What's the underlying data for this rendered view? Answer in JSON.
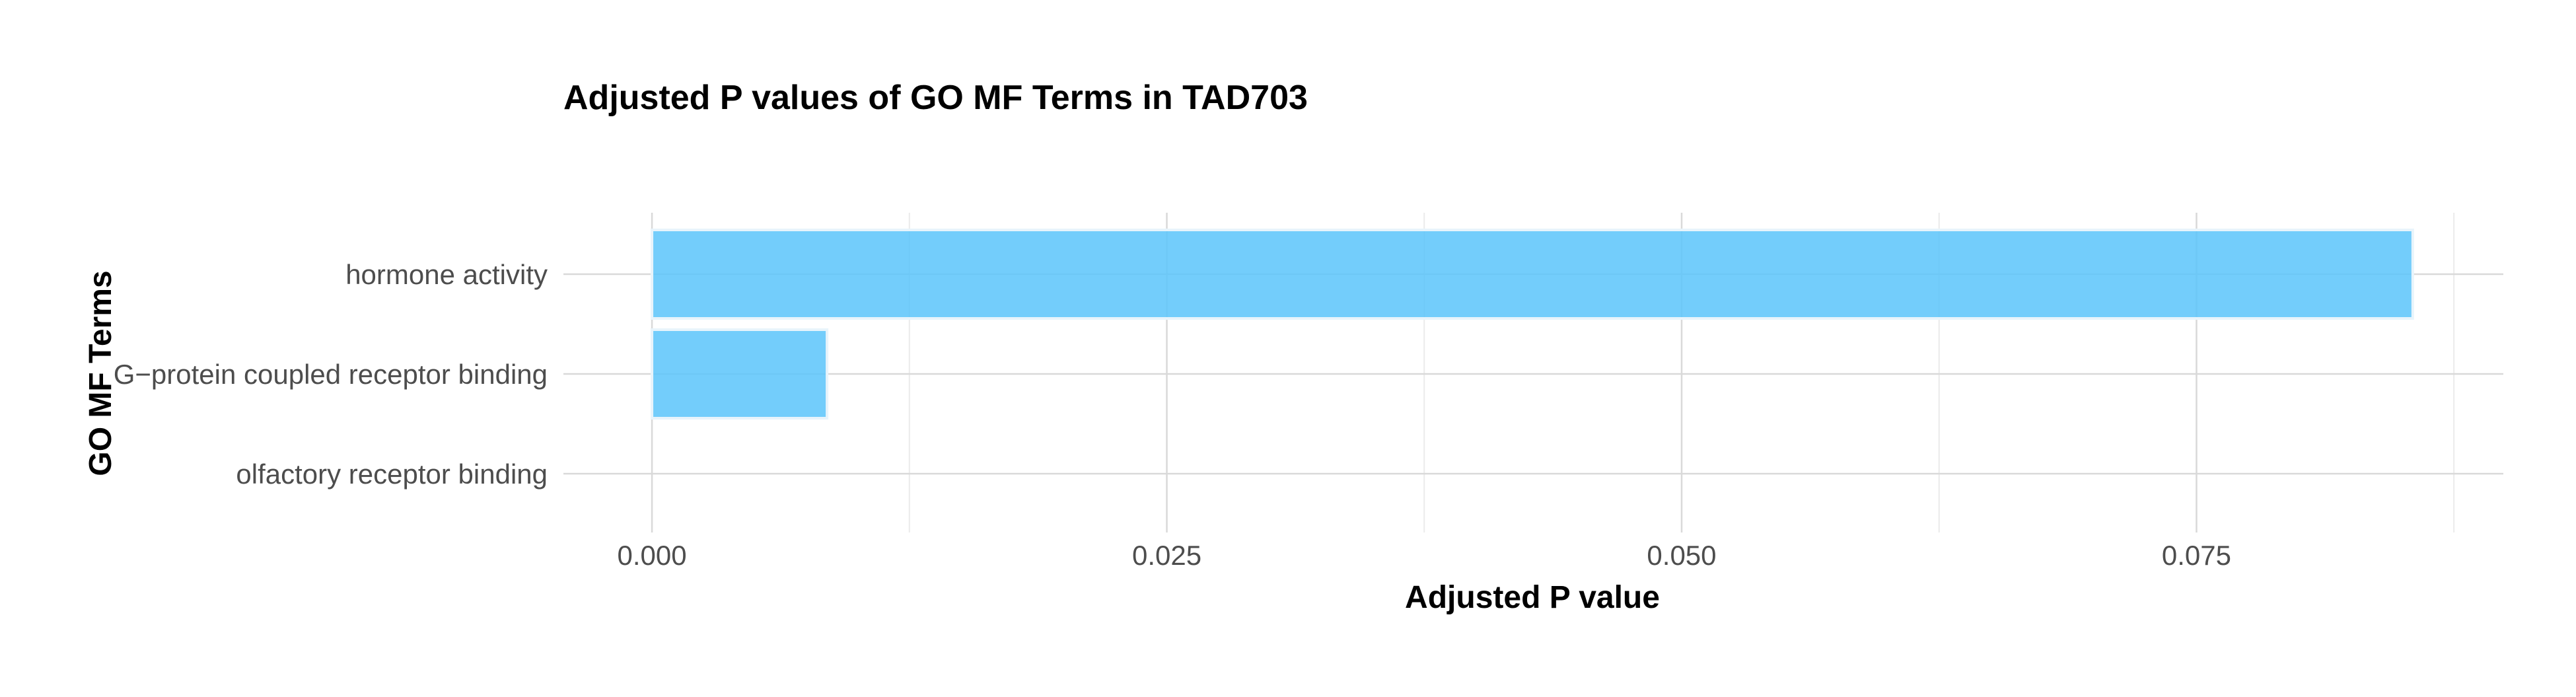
{
  "chart_data": {
    "type": "bar",
    "orientation": "horizontal",
    "title": "Adjusted P values of GO MF Terms in TAD703",
    "xlabel": "Adjusted P value",
    "ylabel": "GO MF Terms",
    "categories": [
      "hormone activity",
      "G−protein coupled receptor binding",
      "olfactory receptor binding"
    ],
    "values": [
      0.0855,
      0.0085,
      0.0
    ],
    "xlim": [
      -0.0043,
      0.0899
    ],
    "xticks": [
      0.0,
      0.025,
      0.05,
      0.075
    ],
    "xtick_labels": [
      "0.000",
      "0.025",
      "0.050",
      "0.075"
    ],
    "grid": true,
    "legend": "none",
    "colors": {
      "bar_fill": "#5bc4fa",
      "bar_outline": "#e8f4fb",
      "grid_major": "#d9d9d9",
      "grid_minor": "#ebebeb",
      "tick_text": "#4d4d4d",
      "title_text": "#000000"
    }
  }
}
